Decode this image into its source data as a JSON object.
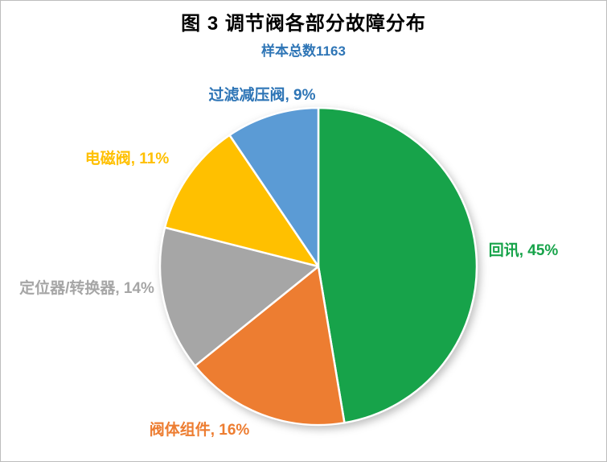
{
  "chart_data": {
    "type": "pie",
    "title": "图 3 调节阀各部分故障分布",
    "subtitle": "样本总数1163",
    "subtitle_color": "#2E75B6",
    "sample_total": 1163,
    "legend_position": "none",
    "labels_on": true,
    "slices": [
      {
        "name": "回讯",
        "pct": 45,
        "color": "#17A34A",
        "label_color": "#17A34A",
        "label_text": "回讯, 45%"
      },
      {
        "name": "阀体组件",
        "pct": 16,
        "color": "#ED7D31",
        "label_color": "#ED7D31",
        "label_text": "阀体组件, 16%"
      },
      {
        "name": "定位器/转换器",
        "pct": 14,
        "color": "#A6A6A6",
        "label_color": "#A6A6A6",
        "label_text": "定位器/转换器, 14%"
      },
      {
        "name": "电磁阀",
        "pct": 11,
        "color": "#FFC000",
        "label_color": "#FFC000",
        "label_text": "电磁阀, 11%"
      },
      {
        "name": "过滤减压阀",
        "pct": 9,
        "color": "#5B9BD5",
        "label_color": "#2E75B6",
        "label_text": "过滤减压阀, 9%"
      }
    ]
  }
}
